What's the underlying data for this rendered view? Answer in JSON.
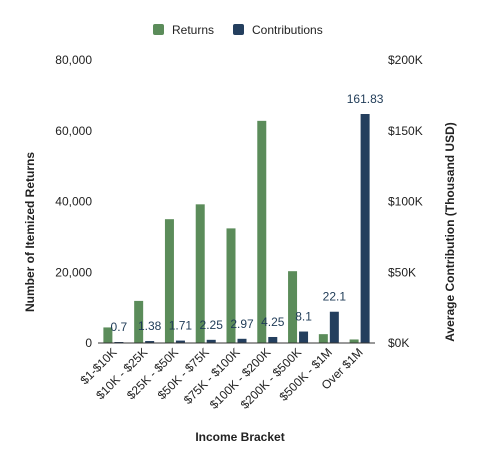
{
  "chart_data": {
    "type": "bar",
    "xlabel": "Income Bracket",
    "ylabel_left": "Number of Itemized Returns",
    "ylabel_right": "Average Contribution (Thousand USD)",
    "categories": [
      "$1-$10K",
      "$10K - $25K",
      "$25K - $50K",
      "$50K - $75K",
      "$75K - $100K",
      "$100K - $200K",
      "$200K - $500K",
      "$500K - $1M",
      "Over $1M"
    ],
    "series": [
      {
        "name": "Returns",
        "axis": "left",
        "color": "#5b8c5a",
        "values": [
          4400,
          11900,
          35000,
          39200,
          32400,
          62800,
          20300,
          2500,
          1000
        ]
      },
      {
        "name": "Contributions",
        "axis": "right",
        "color": "#243f5e",
        "values": [
          0.7,
          1.38,
          1.71,
          2.25,
          2.97,
          4.25,
          8.1,
          22.1,
          161.83
        ],
        "labels": [
          "0.7",
          "1.38",
          "1.71",
          "2.25",
          "2.97",
          "4.25",
          "8.1",
          "22.1",
          "161.83"
        ]
      }
    ],
    "ylim_left": [
      0,
      80000
    ],
    "ylim_right": [
      0,
      200
    ],
    "left_ticks": [
      "0",
      "20,000",
      "40,000",
      "60,000",
      "80,000"
    ],
    "right_ticks": [
      "$0K",
      "$50K",
      "$100K",
      "$150K",
      "$200K"
    ],
    "legend_position": "top",
    "grid": false
  }
}
